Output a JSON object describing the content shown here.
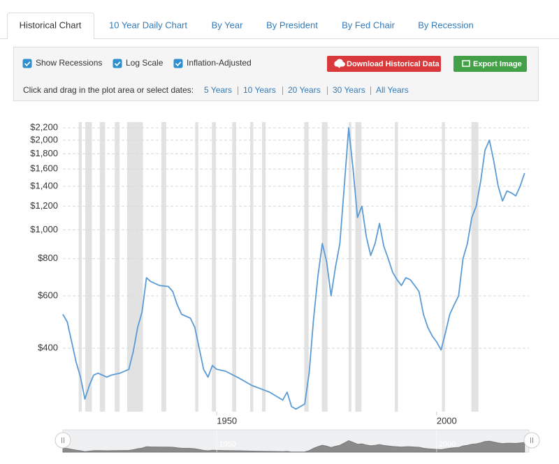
{
  "tabs": [
    {
      "label": "Historical Chart",
      "active": true
    },
    {
      "label": "10 Year Daily Chart",
      "active": false
    },
    {
      "label": "By Year",
      "active": false
    },
    {
      "label": "By President",
      "active": false
    },
    {
      "label": "By Fed Chair",
      "active": false
    },
    {
      "label": "By Recession",
      "active": false
    }
  ],
  "controls": {
    "checkboxes": [
      {
        "label": "Show Recessions",
        "checked": true
      },
      {
        "label": "Log Scale",
        "checked": true
      },
      {
        "label": "Inflation-Adjusted",
        "checked": true
      }
    ],
    "buttons": [
      {
        "label": "Download Historical Data",
        "color": "#d9393b"
      },
      {
        "label": "Export Image",
        "color": "#43a047"
      }
    ],
    "range_prompt": "Click and drag in the plot area or select dates:",
    "range_links": [
      "5 Years",
      "10 Years",
      "20 Years",
      "30 Years",
      "All Years"
    ]
  },
  "chart_data": {
    "type": "line",
    "x": [
      1915,
      1916,
      1917,
      1918,
      1919,
      1920,
      1921,
      1922,
      1923,
      1925,
      1926,
      1928,
      1930,
      1931,
      1932,
      1933,
      1934,
      1935,
      1937,
      1939,
      1940,
      1941,
      1942,
      1944,
      1945,
      1946,
      1947,
      1948,
      1949,
      1950,
      1952,
      1955,
      1958,
      1962,
      1965,
      1966,
      1967,
      1968,
      1970,
      1971,
      1972,
      1973,
      1974,
      1975,
      1976,
      1977,
      1978,
      1979,
      1980,
      1981,
      1982,
      1983,
      1984,
      1985,
      1986,
      1987,
      1988,
      1989,
      1990,
      1991,
      1992,
      1993,
      1994,
      1995,
      1996,
      1997,
      1998,
      1999,
      2000,
      2001,
      2002,
      2003,
      2004,
      2005,
      2006,
      2007,
      2008,
      2009,
      2010,
      2011,
      2012,
      2013,
      2014,
      2015,
      2016,
      2017,
      2018,
      2019,
      2020
    ],
    "values": [
      520,
      490,
      420,
      360,
      320,
      270,
      300,
      325,
      330,
      320,
      325,
      330,
      340,
      390,
      470,
      530,
      690,
      670,
      650,
      645,
      620,
      560,
      520,
      505,
      470,
      400,
      340,
      320,
      350,
      340,
      335,
      318,
      300,
      285,
      268,
      285,
      255,
      250,
      260,
      330,
      500,
      700,
      900,
      780,
      600,
      750,
      900,
      1400,
      2200,
      1600,
      1100,
      1200,
      950,
      820,
      900,
      1050,
      880,
      800,
      720,
      680,
      650,
      690,
      680,
      650,
      620,
      520,
      470,
      440,
      420,
      395,
      450,
      520,
      560,
      600,
      800,
      900,
      1100,
      1200,
      1450,
      1850,
      2000,
      1700,
      1400,
      1250,
      1350,
      1330,
      1300,
      1400,
      1550
    ],
    "color": "#5b9bd5",
    "xlim": [
      1915,
      2021
    ],
    "xticks": [
      1950,
      2000
    ],
    "ylim": [
      245,
      2300
    ],
    "yticks": [
      {
        "value": 400,
        "label": "$400"
      },
      {
        "value": 600,
        "label": "$600"
      },
      {
        "value": 800,
        "label": "$800"
      },
      {
        "value": 1000,
        "label": "$1,000"
      },
      {
        "value": 1200,
        "label": "$1,200"
      },
      {
        "value": 1400,
        "label": "$1,400"
      },
      {
        "value": 1600,
        "label": "$1,600"
      },
      {
        "value": 1800,
        "label": "$1,800"
      },
      {
        "value": 2000,
        "label": "$2,000"
      },
      {
        "value": 2200,
        "label": "$2,200"
      }
    ],
    "log_scale": true,
    "grid": true,
    "recessions": [
      [
        1918.6,
        1919.3
      ],
      [
        1920.1,
        1921.6
      ],
      [
        1923.4,
        1924.6
      ],
      [
        1926.8,
        1927.9
      ],
      [
        1929.6,
        1933.2
      ],
      [
        1937.4,
        1938.5
      ],
      [
        1945.1,
        1945.8
      ],
      [
        1948.9,
        1949.8
      ],
      [
        1953.5,
        1954.4
      ],
      [
        1957.6,
        1958.3
      ],
      [
        1960.3,
        1961.1
      ],
      [
        1969.9,
        1970.9
      ],
      [
        1973.9,
        1975.2
      ],
      [
        1980.0,
        1980.6
      ],
      [
        1981.5,
        1982.9
      ],
      [
        1990.5,
        1991.2
      ],
      [
        2001.2,
        2001.9
      ],
      [
        2007.9,
        2009.5
      ]
    ],
    "recession_color": "#e2e2e2"
  }
}
